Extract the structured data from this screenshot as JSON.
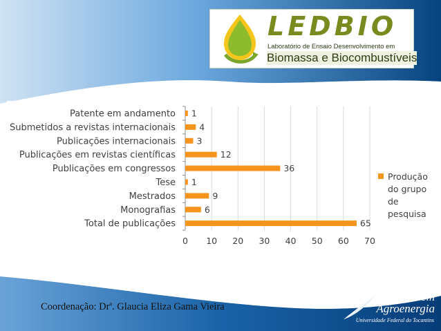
{
  "logo": {
    "title": "LEDBIO",
    "subtitle_line1": "Laboratório de Ensaio Desenvolvimento em",
    "subtitle_line2": "Biomassa e Biocombustíveis"
  },
  "chart_data": {
    "type": "bar",
    "orientation": "horizontal",
    "categories": [
      "Patente em andamento",
      "Submetidos a revistas internacionais",
      "Publicações internacionais",
      "Publicações em revistas científicas",
      "Publicações em congressos",
      "Tese",
      "Mestrados",
      "Monografias",
      "Total de publicações"
    ],
    "series": [
      {
        "name": "Produção do grupo de pesquisa",
        "values": [
          1,
          4,
          3,
          12,
          36,
          1,
          9,
          6,
          65
        ]
      }
    ],
    "xlim": [
      0,
      70
    ],
    "xticks": [
      0,
      10,
      20,
      30,
      40,
      50,
      60,
      70
    ],
    "legend_lines": [
      "Produção",
      "do grupo",
      "de",
      "pesquisa"
    ],
    "legend_position": "right",
    "grid": true,
    "bar_color": "#F7941D"
  },
  "footer": {
    "coordination_prefix": "Coordenação: Dr",
    "coordination_sup": "a",
    "coordination_name": ". Glaucia Eliza Gama Vieira"
  },
  "program_logo": {
    "line1": "Mestrado em",
    "line2": "Agroenergia",
    "line3": "Universidade Federal do Tocantins"
  }
}
